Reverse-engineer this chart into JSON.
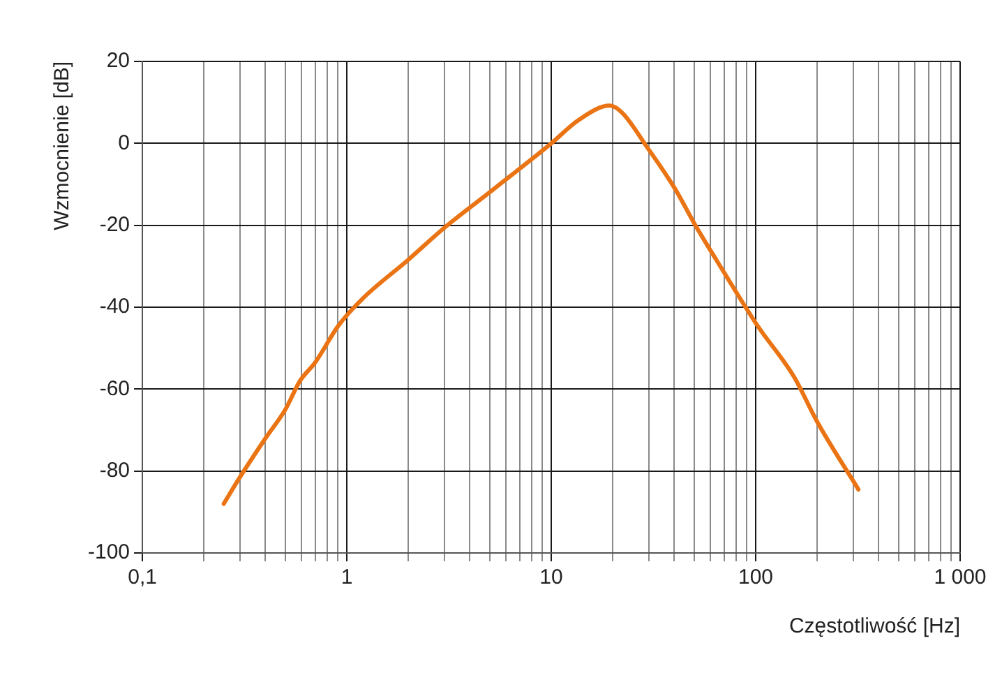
{
  "chart_data": {
    "type": "line",
    "xlabel": "Częstotliwość [Hz]",
    "ylabel": "Wzmocnienie [dB]",
    "log": "x",
    "grid": true,
    "legend": false,
    "marker": "none",
    "line_style": "solid",
    "xlim": [
      0.1,
      1000
    ],
    "ylim": [
      -100,
      20
    ],
    "xticks": [
      {
        "value": 0.1,
        "label": "0,1"
      },
      {
        "value": 0.2,
        "label": null
      },
      {
        "value": 0.3,
        "label": null
      },
      {
        "value": 0.4,
        "label": null
      },
      {
        "value": 0.5,
        "label": null
      },
      {
        "value": 0.6,
        "label": null
      },
      {
        "value": 0.7,
        "label": null
      },
      {
        "value": 0.8,
        "label": null
      },
      {
        "value": 0.9,
        "label": null
      },
      1,
      {
        "value": 2,
        "label": null
      },
      {
        "value": 3,
        "label": null
      },
      {
        "value": 4,
        "label": null
      },
      {
        "value": 5,
        "label": null
      },
      {
        "value": 6,
        "label": null
      },
      {
        "value": 7,
        "label": null
      },
      {
        "value": 8,
        "label": null
      },
      {
        "value": 9,
        "label": null
      },
      10,
      {
        "value": 20,
        "label": null
      },
      {
        "value": 30,
        "label": null
      },
      {
        "value": 40,
        "label": null
      },
      {
        "value": 50,
        "label": null
      },
      {
        "value": 60,
        "label": null
      },
      {
        "value": 70,
        "label": null
      },
      {
        "value": 80,
        "label": null
      },
      {
        "value": 90,
        "label": null
      },
      100,
      {
        "value": 200,
        "label": null
      },
      {
        "value": 300,
        "label": null
      },
      {
        "value": 400,
        "label": null
      },
      {
        "value": 500,
        "label": null
      },
      {
        "value": 600,
        "label": null
      },
      {
        "value": 700,
        "label": null
      },
      {
        "value": 800,
        "label": null
      },
      {
        "value": 900,
        "label": null
      },
      {
        "value": 1000,
        "label": "1 000"
      }
    ],
    "yticks": [
      -100,
      -80,
      -60,
      -40,
      -20,
      0,
      20
    ],
    "series": [
      {
        "color": "#ea7414",
        "x": [
          0.25,
          0.3,
          0.4,
          0.5,
          0.59,
          0.7,
          0.91,
          1.19,
          2.0,
          3.0,
          5.1,
          10,
          13.6,
          19.3,
          22.2,
          29.4,
          40.2,
          50.7,
          71,
          102,
          154,
          200,
          318
        ],
        "values": [
          -88,
          -81.5,
          -72,
          -65,
          -58,
          -53.5,
          -44.5,
          -38,
          -28.4,
          -20.6,
          -11.6,
          0,
          5.7,
          9.2,
          7.5,
          -0.9,
          -11,
          -20,
          -32,
          -44.5,
          -57,
          -68,
          -84.5
        ]
      }
    ]
  }
}
